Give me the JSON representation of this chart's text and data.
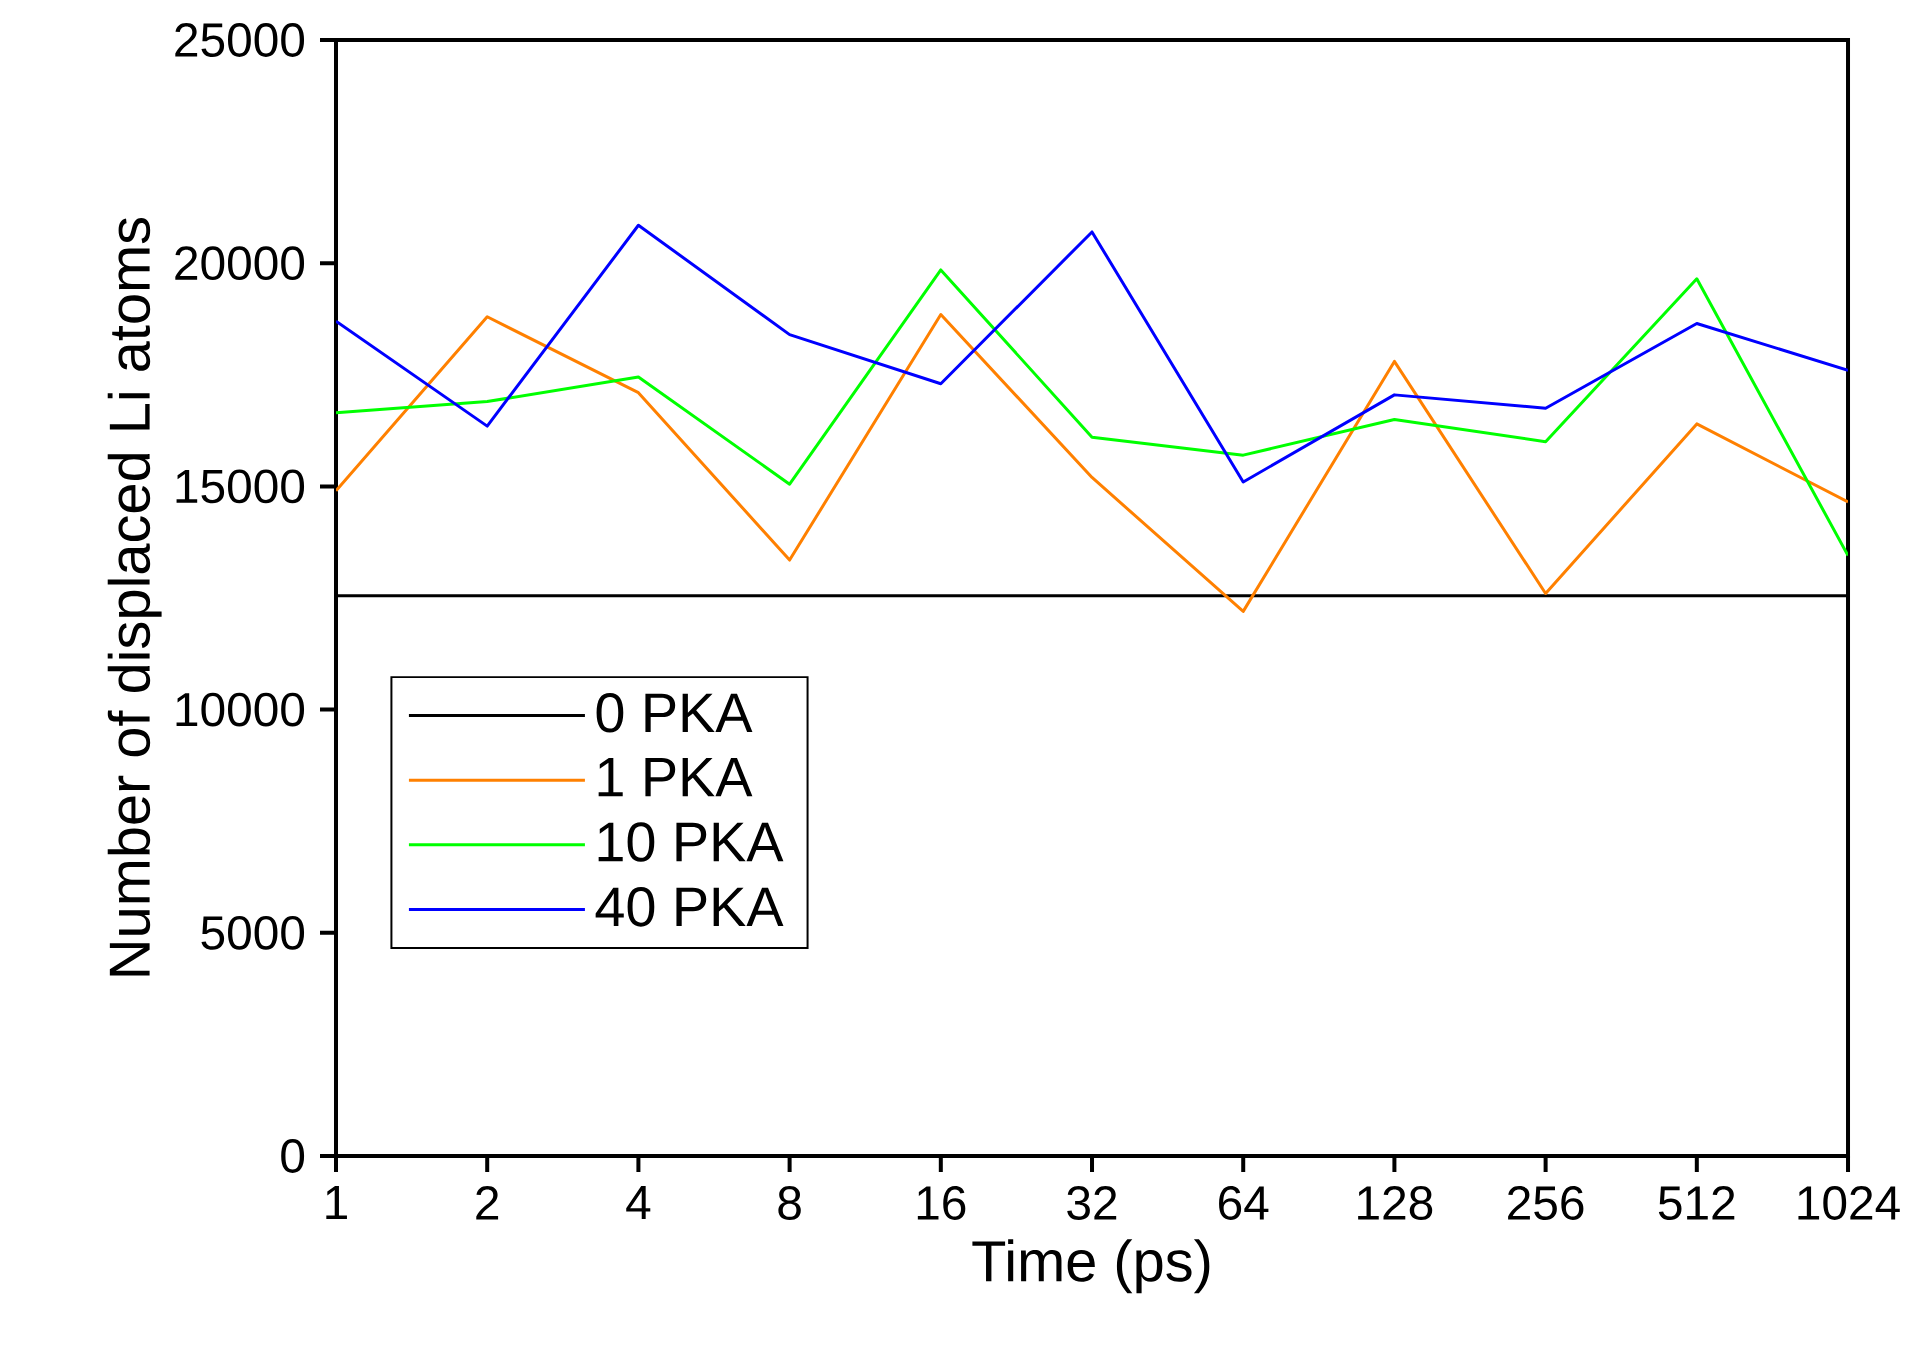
{
  "chart_data": {
    "type": "line",
    "xlabel": "Time (ps)",
    "ylabel": "Number of displaced Li atoms",
    "categories": [
      "1",
      "2",
      "4",
      "8",
      "16",
      "32",
      "64",
      "128",
      "256",
      "512",
      "1024"
    ],
    "ylim": [
      0,
      25000
    ],
    "yticks": [
      0,
      5000,
      10000,
      15000,
      20000,
      25000
    ],
    "series": [
      {
        "name": "0 PKA",
        "color": "#000000",
        "values": [
          12550,
          12550,
          12550,
          12550,
          12550,
          12550,
          12550,
          12550,
          12550,
          12550,
          12550
        ]
      },
      {
        "name": "1 PKA",
        "color": "#ff8000",
        "values": [
          14900,
          18800,
          17100,
          13350,
          18850,
          15200,
          12200,
          17800,
          12600,
          16400,
          14650
        ]
      },
      {
        "name": "10 PKA",
        "color": "#00ff00",
        "values": [
          16650,
          16900,
          17450,
          15050,
          19850,
          16100,
          15700,
          16500,
          16000,
          19650,
          13450
        ]
      },
      {
        "name": "40 PKA",
        "color": "#0000ff",
        "values": [
          18700,
          16350,
          20850,
          18400,
          17300,
          20700,
          15100,
          17050,
          16750,
          18650,
          17600
        ]
      }
    ],
    "legend": "left",
    "marker": "none",
    "line_style": "solid",
    "grid": false
  }
}
